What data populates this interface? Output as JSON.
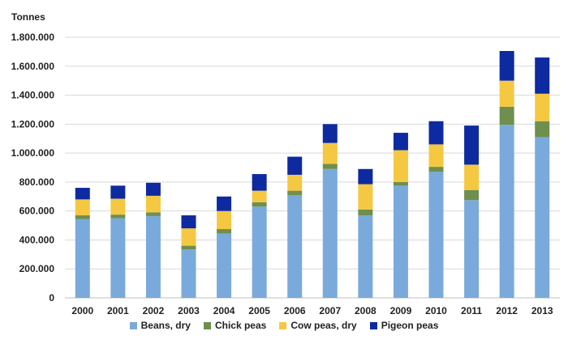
{
  "chart_data": {
    "type": "bar",
    "stacked": true,
    "ylabel": "Tonnes",
    "xlabel": "",
    "ylim": [
      0,
      1800000
    ],
    "yticks": [
      0,
      200000,
      400000,
      600000,
      800000,
      1000000,
      1200000,
      1400000,
      1600000,
      1800000
    ],
    "ytick_labels": [
      "0",
      "200.000",
      "400.000",
      "600.000",
      "800.000",
      "1.000.000",
      "1.200.000",
      "1.400.000",
      "1.600.000",
      "1.800.000"
    ],
    "grid": true,
    "legend_position": "bottom",
    "categories": [
      "2000",
      "2001",
      "2002",
      "2003",
      "2004",
      "2005",
      "2006",
      "2007",
      "2008",
      "2009",
      "2010",
      "2011",
      "2012",
      "2013"
    ],
    "series": [
      {
        "name": "Beans, dry",
        "color": "#7aaadb",
        "values": [
          545000,
          550000,
          565000,
          335000,
          445000,
          630000,
          710000,
          890000,
          570000,
          775000,
          870000,
          675000,
          1195000,
          1110000
        ]
      },
      {
        "name": "Chick peas",
        "color": "#6e8f4e",
        "values": [
          25000,
          25000,
          25000,
          25000,
          30000,
          30000,
          30000,
          35000,
          40000,
          25000,
          35000,
          70000,
          125000,
          110000
        ]
      },
      {
        "name": "Cow peas, dry",
        "color": "#f5c842",
        "values": [
          110000,
          110000,
          115000,
          120000,
          125000,
          80000,
          110000,
          145000,
          175000,
          220000,
          155000,
          175000,
          180000,
          190000
        ]
      },
      {
        "name": "Pigeon peas",
        "color": "#0e2aa0",
        "values": [
          80000,
          90000,
          90000,
          90000,
          100000,
          115000,
          125000,
          130000,
          105000,
          120000,
          160000,
          270000,
          205000,
          250000
        ]
      }
    ]
  }
}
